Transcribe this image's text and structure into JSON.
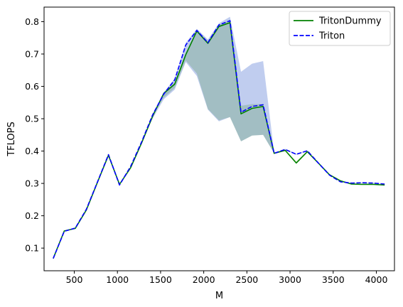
{
  "chart_data": {
    "type": "line",
    "xlabel": "M",
    "ylabel": "TFLOPS",
    "xlim": [
      150,
      4210
    ],
    "ylim": [
      0.03,
      0.845
    ],
    "xticks": [
      500,
      1000,
      1500,
      2000,
      2500,
      3000,
      3500,
      4000
    ],
    "yticks": [
      0.1,
      0.2,
      0.3,
      0.4,
      0.5,
      0.6,
      0.7,
      0.8
    ],
    "grid": false,
    "legend_position": "top-right",
    "x": [
      256,
      384,
      512,
      640,
      768,
      896,
      1024,
      1152,
      1280,
      1408,
      1536,
      1664,
      1792,
      1920,
      2048,
      2176,
      2304,
      2432,
      2560,
      2688,
      2816,
      2944,
      3072,
      3200,
      3328,
      3456,
      3584,
      3712,
      3840,
      3968,
      4096
    ],
    "series": [
      {
        "name": "TritonDummy",
        "color": "#008000",
        "style": "solid",
        "band_color": "#7fbf3f",
        "values": [
          0.068,
          0.153,
          0.161,
          0.218,
          0.303,
          0.387,
          0.297,
          0.348,
          0.425,
          0.508,
          0.578,
          0.607,
          0.698,
          0.771,
          0.733,
          0.785,
          0.797,
          0.515,
          0.532,
          0.538,
          0.393,
          0.402,
          0.363,
          0.398,
          0.363,
          0.327,
          0.308,
          0.298,
          0.297,
          0.297,
          0.295
        ],
        "lower": [
          0.068,
          0.153,
          0.161,
          0.218,
          0.303,
          0.387,
          0.297,
          0.348,
          0.425,
          0.508,
          0.565,
          0.595,
          0.68,
          0.64,
          0.53,
          0.495,
          0.505,
          0.43,
          0.448,
          0.45,
          0.393,
          0.402,
          0.363,
          0.398,
          0.363,
          0.327,
          0.308,
          0.298,
          0.297,
          0.297,
          0.295
        ],
        "upper": [
          0.068,
          0.153,
          0.161,
          0.218,
          0.303,
          0.387,
          0.297,
          0.348,
          0.425,
          0.508,
          0.582,
          0.612,
          0.705,
          0.775,
          0.74,
          0.79,
          0.805,
          0.54,
          0.545,
          0.545,
          0.396,
          0.405,
          0.368,
          0.4,
          0.365,
          0.329,
          0.309,
          0.299,
          0.298,
          0.298,
          0.296
        ]
      },
      {
        "name": "Triton",
        "color": "#0000ff",
        "style": "dashed",
        "band_color": "#4a6fd0",
        "values": [
          0.068,
          0.152,
          0.162,
          0.22,
          0.304,
          0.389,
          0.295,
          0.352,
          0.428,
          0.512,
          0.576,
          0.62,
          0.728,
          0.773,
          0.735,
          0.79,
          0.803,
          0.52,
          0.538,
          0.543,
          0.393,
          0.405,
          0.39,
          0.401,
          0.363,
          0.326,
          0.305,
          0.301,
          0.302,
          0.301,
          0.298
        ],
        "lower": [
          0.068,
          0.152,
          0.162,
          0.22,
          0.304,
          0.389,
          0.295,
          0.352,
          0.428,
          0.5,
          0.56,
          0.59,
          0.675,
          0.632,
          0.528,
          0.492,
          0.505,
          0.43,
          0.448,
          0.45,
          0.393,
          0.403,
          0.388,
          0.4,
          0.362,
          0.325,
          0.304,
          0.3,
          0.301,
          0.3,
          0.297
        ],
        "upper": [
          0.068,
          0.152,
          0.162,
          0.22,
          0.304,
          0.389,
          0.295,
          0.352,
          0.428,
          0.515,
          0.58,
          0.625,
          0.735,
          0.778,
          0.745,
          0.795,
          0.815,
          0.645,
          0.67,
          0.678,
          0.395,
          0.407,
          0.392,
          0.402,
          0.364,
          0.327,
          0.306,
          0.302,
          0.303,
          0.302,
          0.299
        ]
      }
    ]
  }
}
